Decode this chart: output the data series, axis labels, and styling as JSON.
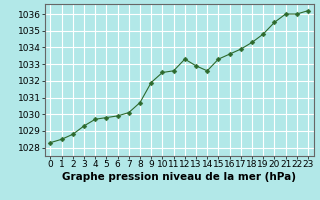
{
  "x": [
    0,
    1,
    2,
    3,
    4,
    5,
    6,
    7,
    8,
    9,
    10,
    11,
    12,
    13,
    14,
    15,
    16,
    17,
    18,
    19,
    20,
    21,
    22,
    23
  ],
  "y": [
    1028.3,
    1028.5,
    1028.8,
    1029.3,
    1029.7,
    1029.8,
    1029.9,
    1030.1,
    1030.7,
    1031.9,
    1032.5,
    1032.6,
    1033.3,
    1032.9,
    1032.6,
    1033.3,
    1033.6,
    1033.9,
    1034.3,
    1034.8,
    1035.5,
    1036.0,
    1036.0,
    1036.2
  ],
  "line_color": "#2d6a2d",
  "marker": "D",
  "marker_size": 2.5,
  "bg_color": "#b2e8e8",
  "grid_color": "#ffffff",
  "xlabel": "Graphe pression niveau de la mer (hPa)",
  "xlabel_fontsize": 7.5,
  "ylabel_ticks": [
    1028,
    1029,
    1030,
    1031,
    1032,
    1033,
    1034,
    1035,
    1036
  ],
  "ylim": [
    1027.5,
    1036.6
  ],
  "xlim": [
    -0.5,
    23.5
  ],
  "xticks": [
    0,
    1,
    2,
    3,
    4,
    5,
    6,
    7,
    8,
    9,
    10,
    11,
    12,
    13,
    14,
    15,
    16,
    17,
    18,
    19,
    20,
    21,
    22,
    23
  ],
  "tick_fontsize": 6.5,
  "axis_color": "#666666"
}
